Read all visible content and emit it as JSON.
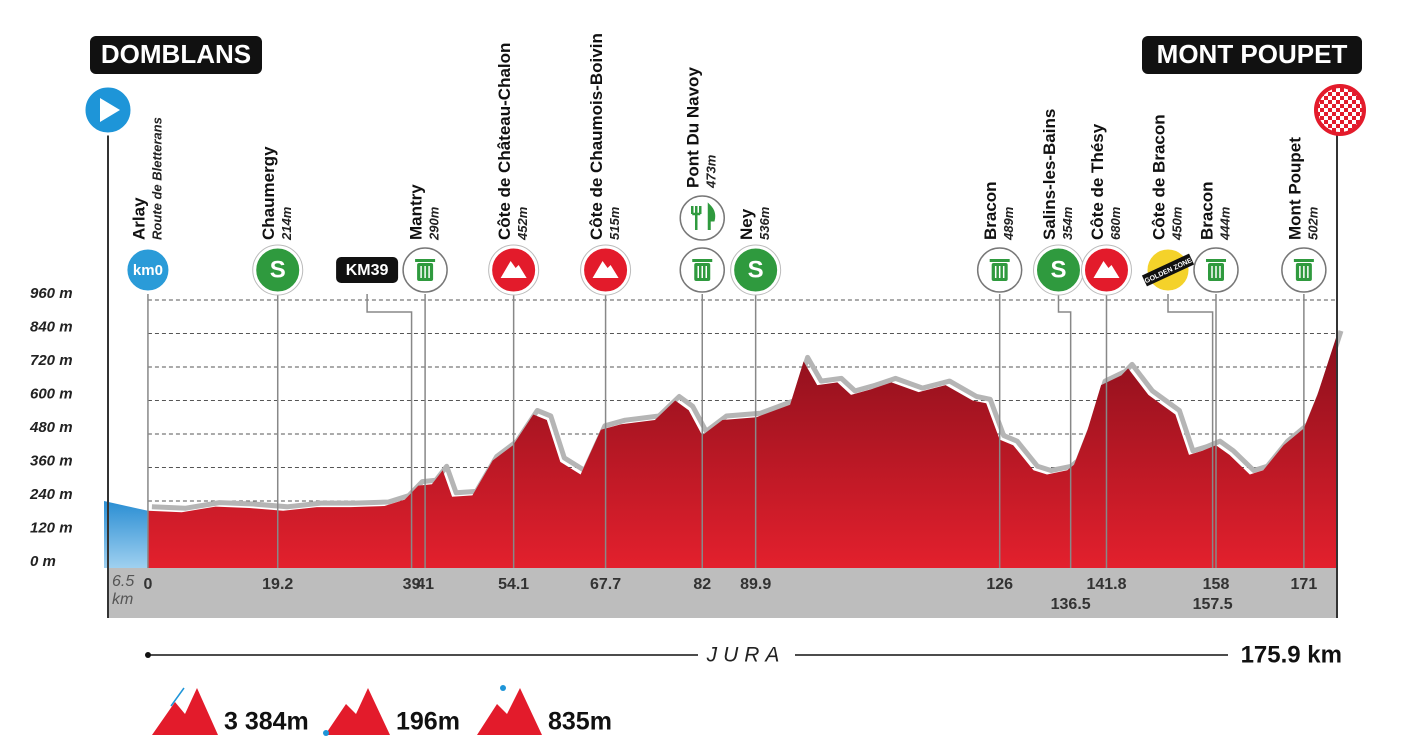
{
  "chart_data": {
    "type": "area",
    "start": "DOMBLANS",
    "finish": "MONT POUPET",
    "xlim": [
      -6.5,
      175.9
    ],
    "xticks": [
      {
        "value": -6.5,
        "label": "6.5 km"
      },
      0,
      19.2,
      39,
      41,
      54.1,
      67.7,
      82,
      89.9,
      126,
      136.5,
      141.8,
      157.5,
      158,
      171
    ],
    "ylim": [
      0,
      960
    ],
    "yticks": [
      {
        "value": 0,
        "label": "0 m"
      },
      {
        "value": 120,
        "label": "120 m"
      },
      {
        "value": 240,
        "label": "240 m"
      },
      {
        "value": 360,
        "label": "360 m"
      },
      {
        "value": 480,
        "label": "480 m"
      },
      {
        "value": 600,
        "label": "600 m"
      },
      {
        "value": 720,
        "label": "720 m"
      },
      {
        "value": 840,
        "label": "840 m"
      },
      {
        "value": 960,
        "label": "960 m"
      }
    ],
    "grid": true,
    "series": [
      {
        "color": "#d7182a",
        "x": [
          0,
          5,
          10,
          15,
          20,
          25,
          30,
          35,
          38,
          40,
          42,
          43.6,
          45,
          48,
          51,
          54,
          57,
          59,
          61,
          64,
          67,
          70,
          75,
          78,
          80,
          82,
          85,
          90,
          95,
          97,
          99,
          102,
          104,
          107,
          110,
          114,
          118,
          122,
          124,
          126,
          128,
          131,
          133,
          136,
          137,
          139,
          141,
          144,
          145,
          148,
          150,
          152,
          154,
          156,
          158,
          160,
          163,
          165,
          168,
          171,
          173,
          175.9
        ],
        "values": [
          205,
          200,
          220,
          215,
          205,
          218,
          218,
          222,
          245,
          295,
          300,
          350,
          255,
          260,
          385,
          440,
          550,
          530,
          380,
          335,
          495,
          515,
          530,
          600,
          565,
          475,
          530,
          540,
          585,
          740,
          655,
          665,
          620,
          640,
          665,
          630,
          655,
          600,
          590,
          460,
          440,
          350,
          335,
          350,
          370,
          495,
          655,
          690,
          715,
          620,
          585,
          550,
          405,
          420,
          440,
          405,
          335,
          350,
          440,
          500,
          620,
          835
        ]
      },
      {
        "color": "#3a9ad9",
        "x": [
          -6.5,
          0
        ],
        "values": [
          240,
          205
        ]
      }
    ],
    "icon_text": {
      "sprint": "S",
      "km0": "km0",
      "golden": "GOLDEN ZONE"
    },
    "landmarks": [
      {
        "name": "Arlay",
        "note": "Route de Bletterans",
        "km": 0,
        "icons": [
          "km0"
        ]
      },
      {
        "name": "Chaumergy",
        "note": "214m",
        "km": 19.2,
        "icons": [
          "sprint"
        ]
      },
      {
        "name": "Mantry",
        "note": "290m",
        "km": 41,
        "icons": [
          "feed"
        ]
      },
      {
        "name": "Côte de Château-Chalon",
        "note": "452m",
        "km": 54.1,
        "icons": [
          "climb"
        ]
      },
      {
        "name": "Côte de Chaumois-Boivin",
        "note": "515m",
        "km": 67.7,
        "icons": [
          "climb"
        ]
      },
      {
        "name": "Pont Du Navoy",
        "note": "473m",
        "km": 82,
        "icons": [
          "food",
          "feed"
        ]
      },
      {
        "name": "Ney",
        "note": "536m",
        "km": 89.9,
        "icons": [
          "sprint"
        ]
      },
      {
        "name": "Bracon",
        "note": "489m",
        "km": 126,
        "icons": [
          "feed"
        ]
      },
      {
        "name": "Salins-les-Bains",
        "note": "354m",
        "km": 136.5,
        "icons": [
          "sprint"
        ]
      },
      {
        "name": "Côte de Thésy",
        "note": "680m",
        "km": 141.8,
        "icons": [
          "climb"
        ]
      },
      {
        "name": "Côte de Bracon",
        "note": "450m",
        "km": 157.5,
        "icons": [
          "golden"
        ]
      },
      {
        "name": "Bracon",
        "note": "444m",
        "km": 158,
        "icons": [
          "feed"
        ]
      },
      {
        "name": "Mont Poupet",
        "note": "502m",
        "km": 171,
        "icons": [
          "feed"
        ]
      }
    ],
    "markers": [
      {
        "label": "KM39",
        "km": 39
      }
    ],
    "region": "JURA",
    "distance": "175.9 km",
    "summary": {
      "climbing": "3 384m",
      "lowest": "196m",
      "highest": "835m"
    }
  }
}
